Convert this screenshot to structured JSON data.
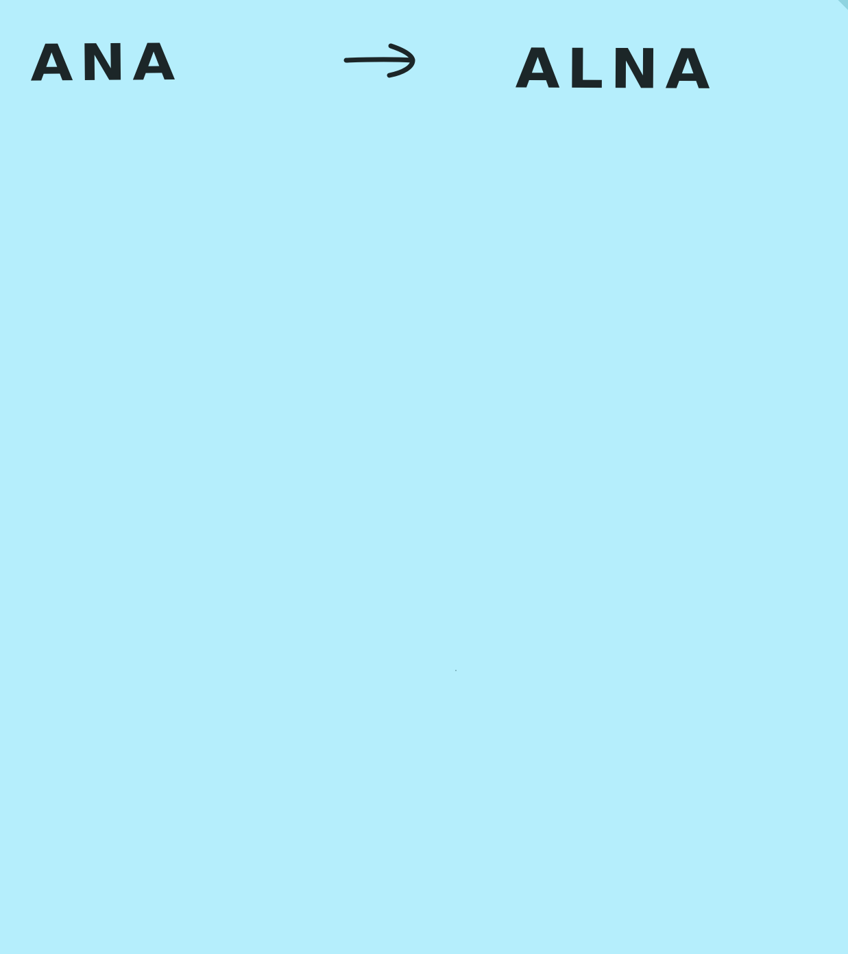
{
  "note": {
    "background_color": "#b5eefc",
    "ink_color": "#1c2628",
    "source_word": "ANA",
    "arrow_icon": "right-arrow-icon",
    "target_word": "ALNA"
  }
}
